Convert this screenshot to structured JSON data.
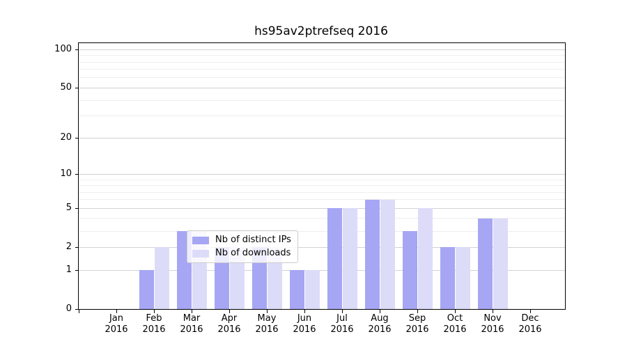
{
  "title": "hs95av2ptrefseq 2016",
  "chart_data": {
    "type": "bar",
    "categories": [
      "Jan 2016",
      "Feb 2016",
      "Mar 2016",
      "Apr 2016",
      "May 2016",
      "Jun 2016",
      "Jul 2016",
      "Aug 2016",
      "Sep 2016",
      "Oct 2016",
      "Nov 2016",
      "Dec 2016"
    ],
    "series": [
      {
        "name": "Nb of distinct IPs",
        "color": "#a6a6f4",
        "values": [
          0,
          1,
          3,
          2,
          2,
          1,
          5,
          6,
          3,
          2,
          4,
          0
        ]
      },
      {
        "name": "Nb of downloads",
        "color": "#dcdcf9",
        "values": [
          0,
          2,
          3,
          2,
          2,
          1,
          5,
          6,
          5,
          2,
          4,
          0
        ]
      }
    ],
    "title": "hs95av2ptrefseq 2016",
    "xlabel": "",
    "ylabel": "",
    "yscale": "log10(y+1)",
    "ylim": [
      0,
      112
    ],
    "y_major_ticks": [
      0,
      1,
      2,
      5,
      10,
      20,
      50,
      100
    ],
    "y_minor_ticks": [
      3,
      4,
      6,
      7,
      8,
      9,
      30,
      40,
      60,
      70,
      80,
      90
    ],
    "grid": "horizontal",
    "legend_position": "lower center"
  },
  "legend": {
    "items": [
      "Nb of distinct IPs",
      "Nb of downloads"
    ]
  },
  "colors": {
    "bar_distinct_ips": "#a6a6f4",
    "bar_downloads": "#dcdcf9",
    "major_grid": "#d2d2d2",
    "minor_grid": "#eeeeee",
    "spine": "#000000",
    "legend_border": "#cccccc"
  }
}
